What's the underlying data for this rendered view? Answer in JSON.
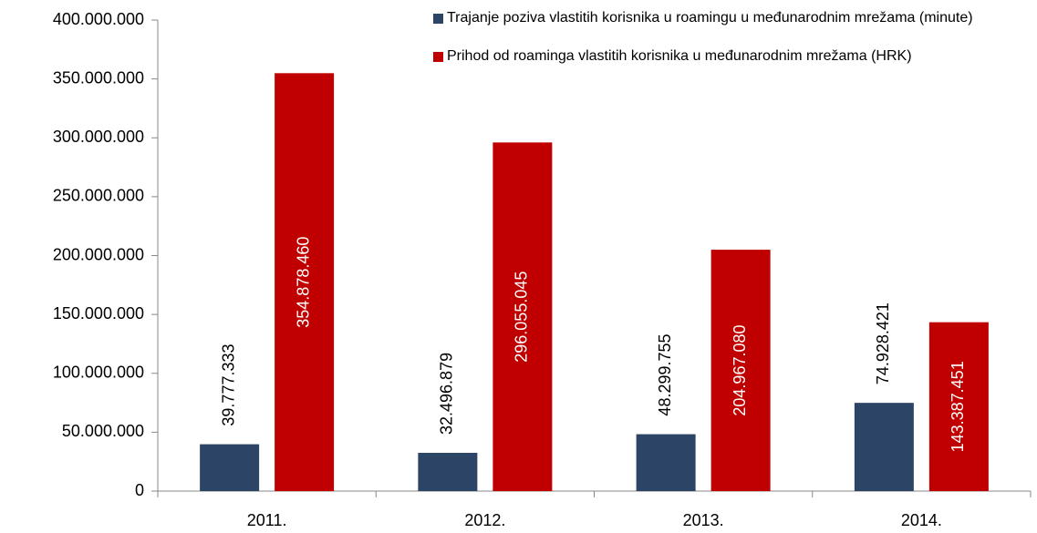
{
  "chart_data": {
    "type": "bar",
    "categories": [
      "2011.",
      "2012.",
      "2013.",
      "2014."
    ],
    "series": [
      {
        "name": "Trajanje poziva vlastitih korisnika u roamingu u međunarodnim mrežama (minute)",
        "color": "#2c4566",
        "values": [
          39777333,
          32496879,
          48299755,
          74928421
        ],
        "value_labels": [
          "39.777.333",
          "32.496.879",
          "48.299.755",
          "74.928.421"
        ]
      },
      {
        "name": "Prihod od roaminga vlastitih korisnika u međunarodnim mrežama (HRK)",
        "color": "#c00000",
        "values": [
          354878460,
          296055045,
          204967080,
          143387451
        ],
        "value_labels": [
          "354.878.460",
          "296.055.045",
          "204.967.080",
          "143.387.451"
        ]
      }
    ],
    "ylim": [
      0,
      400000000
    ],
    "yticks": [
      0,
      {
        "value": 50000000,
        "label": "50.000.000"
      },
      {
        "value": 100000000,
        "label": "100.000.000"
      },
      {
        "value": 150000000,
        "label": "150.000.000"
      },
      {
        "value": 200000000,
        "label": "200.000.000"
      },
      {
        "value": 250000000,
        "label": "250.000.000"
      },
      {
        "value": 300000000,
        "label": "300.000.000"
      },
      {
        "value": 350000000,
        "label": "350.000.000"
      },
      {
        "value": 400000000,
        "label": "400.000.000"
      }
    ],
    "grid": false,
    "legend": "top-right"
  }
}
